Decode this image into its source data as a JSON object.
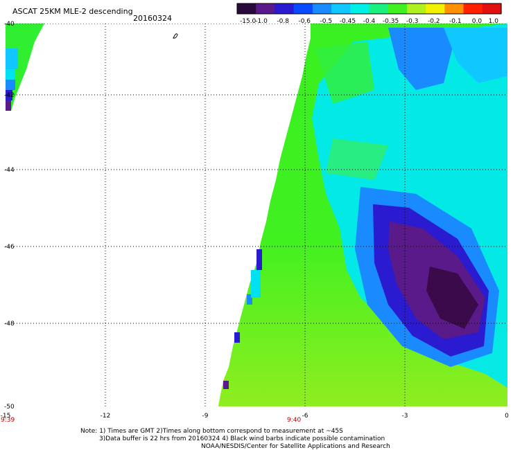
{
  "header": {
    "title": "ASCAT 25KM MLE-2 descending",
    "date": "20160324"
  },
  "colorbar": {
    "labels": [
      "-15.0",
      "-1.0",
      "-0.8",
      "-0.6",
      "-0.5",
      "-0.45",
      "-0.4",
      "-0.35",
      "-0.3",
      "-0.2",
      "-0.1",
      "0.0",
      "1.0"
    ],
    "colors": [
      "#2a0a3a",
      "#5a1a8a",
      "#2a1ad0",
      "#0a4aff",
      "#1a8aff",
      "#10c8ff",
      "#00f0e8",
      "#1af080",
      "#40f020",
      "#b0f020",
      "#f0f000",
      "#ff9000",
      "#ff2000",
      "#e01010"
    ]
  },
  "axes": {
    "x_ticks": [
      "-15",
      "-12",
      "-9",
      "-6",
      "-3",
      "0"
    ],
    "y_ticks": [
      "-40",
      "-42",
      "-44",
      "-46",
      "-48",
      "-50"
    ],
    "time_labels": [
      "9:39",
      "9:40"
    ]
  },
  "footer": {
    "line1": "Note: 1) Times are GMT 2)Times along bottom correspond to measurement at ~45S",
    "line2": "3)Data buffer is 22 hrs from 20160324 4) Black wind barbs indicate possible contamination",
    "line3": "NOAA/NESDIS/Center for Satellite Applications and Research"
  }
}
